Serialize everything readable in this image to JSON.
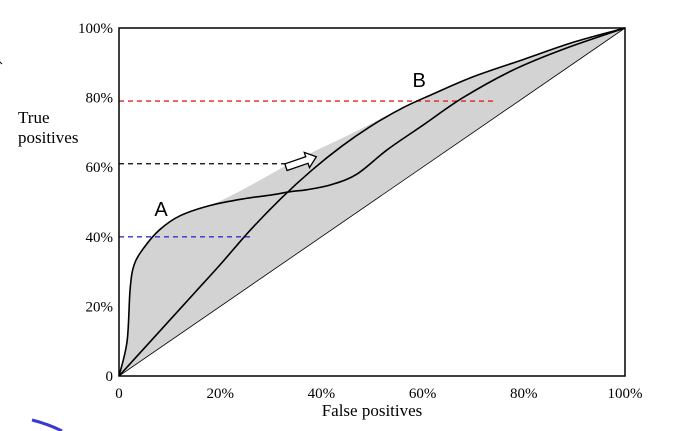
{
  "chart_data": {
    "type": "line",
    "xlabel": "False positives",
    "ylabel_lines": [
      "True",
      "positives"
    ],
    "xlim": [
      0,
      100
    ],
    "ylim": [
      0,
      100
    ],
    "x_ticks": [
      {
        "value": 0,
        "label": "0"
      },
      {
        "value": 20,
        "label": "20%"
      },
      {
        "value": 40,
        "label": "40%"
      },
      {
        "value": 60,
        "label": "60%"
      },
      {
        "value": 80,
        "label": "80%"
      },
      {
        "value": 100,
        "label": "100%"
      }
    ],
    "y_ticks": [
      {
        "value": 0,
        "label": "0"
      },
      {
        "value": 20,
        "label": "20%"
      },
      {
        "value": 40,
        "label": "40%"
      },
      {
        "value": 60,
        "label": "60%"
      },
      {
        "value": 80,
        "label": "80%"
      },
      {
        "value": 100,
        "label": "100%"
      }
    ],
    "grid": false,
    "series": [
      {
        "name": "A",
        "label_at": [
          7,
          46
        ],
        "x": [
          0,
          1.6,
          2.2,
          3,
          5,
          8,
          12,
          18,
          25,
          30,
          34,
          37,
          42,
          47,
          53,
          60,
          68,
          78,
          88,
          100
        ],
        "y": [
          0,
          10,
          25,
          32,
          37,
          42,
          46,
          49,
          51,
          52,
          53,
          53.5,
          55,
          58,
          65,
          72,
          80,
          88,
          94,
          100
        ]
      },
      {
        "name": "B",
        "label_at": [
          58,
          83
        ],
        "x": [
          0,
          5,
          10,
          15,
          20,
          26,
          32,
          38,
          44,
          50,
          56,
          62,
          70,
          80,
          90,
          100
        ],
        "y": [
          0,
          8,
          16,
          24,
          32,
          42,
          51,
          59,
          66,
          72,
          77,
          81,
          86,
          91,
          96,
          100
        ]
      }
    ],
    "diagonal": {
      "x": [
        0,
        100
      ],
      "y": [
        0,
        100
      ]
    },
    "hull": {
      "x": [
        0,
        1.6,
        2.2,
        3,
        5,
        8,
        12,
        18,
        25,
        35,
        45,
        56,
        62,
        70,
        80,
        90,
        100
      ],
      "y": [
        0,
        10,
        25,
        32,
        37,
        42,
        46,
        49,
        54,
        62,
        69,
        77,
        81,
        86,
        91,
        96,
        100
      ],
      "fill": "#d3d3d3"
    },
    "reference_lines": [
      {
        "y": 40,
        "x_start": 0,
        "x_end": 26,
        "color": "#3333cc"
      },
      {
        "y": 61,
        "x_start": 0,
        "x_end": 34,
        "color": "#000000"
      },
      {
        "y": 79,
        "x_start": 0,
        "x_end": 74,
        "color": "#dd2222"
      }
    ],
    "arrow": {
      "tail": [
        33,
        60
      ],
      "tip": [
        39,
        63
      ]
    }
  }
}
